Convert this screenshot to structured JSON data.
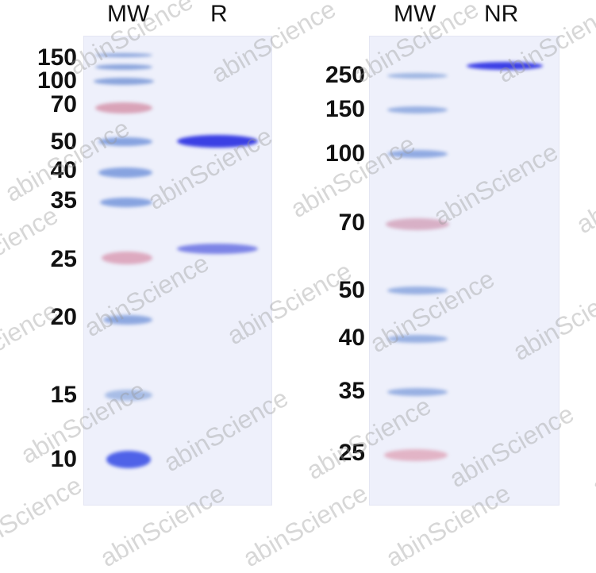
{
  "left_gel": {
    "lane_headers": [
      "MW",
      "R"
    ],
    "mw_labels": [
      "150",
      "100",
      "70",
      "50",
      "40",
      "35",
      "25",
      "20",
      "15",
      "10"
    ],
    "sample_bands": [
      "heavy chain ~50",
      "light chain ~25"
    ]
  },
  "right_gel": {
    "lane_headers": [
      "MW",
      "NR"
    ],
    "mw_labels": [
      "250",
      "150",
      "100",
      "70",
      "50",
      "40",
      "35",
      "25"
    ]
  },
  "watermark": "abinScience",
  "colors": {
    "marker_blue": "#7f9ee0",
    "marker_red": "#d89ab0",
    "sample_band": "#3a3ee6",
    "gel_bg": "#eef0fb"
  }
}
